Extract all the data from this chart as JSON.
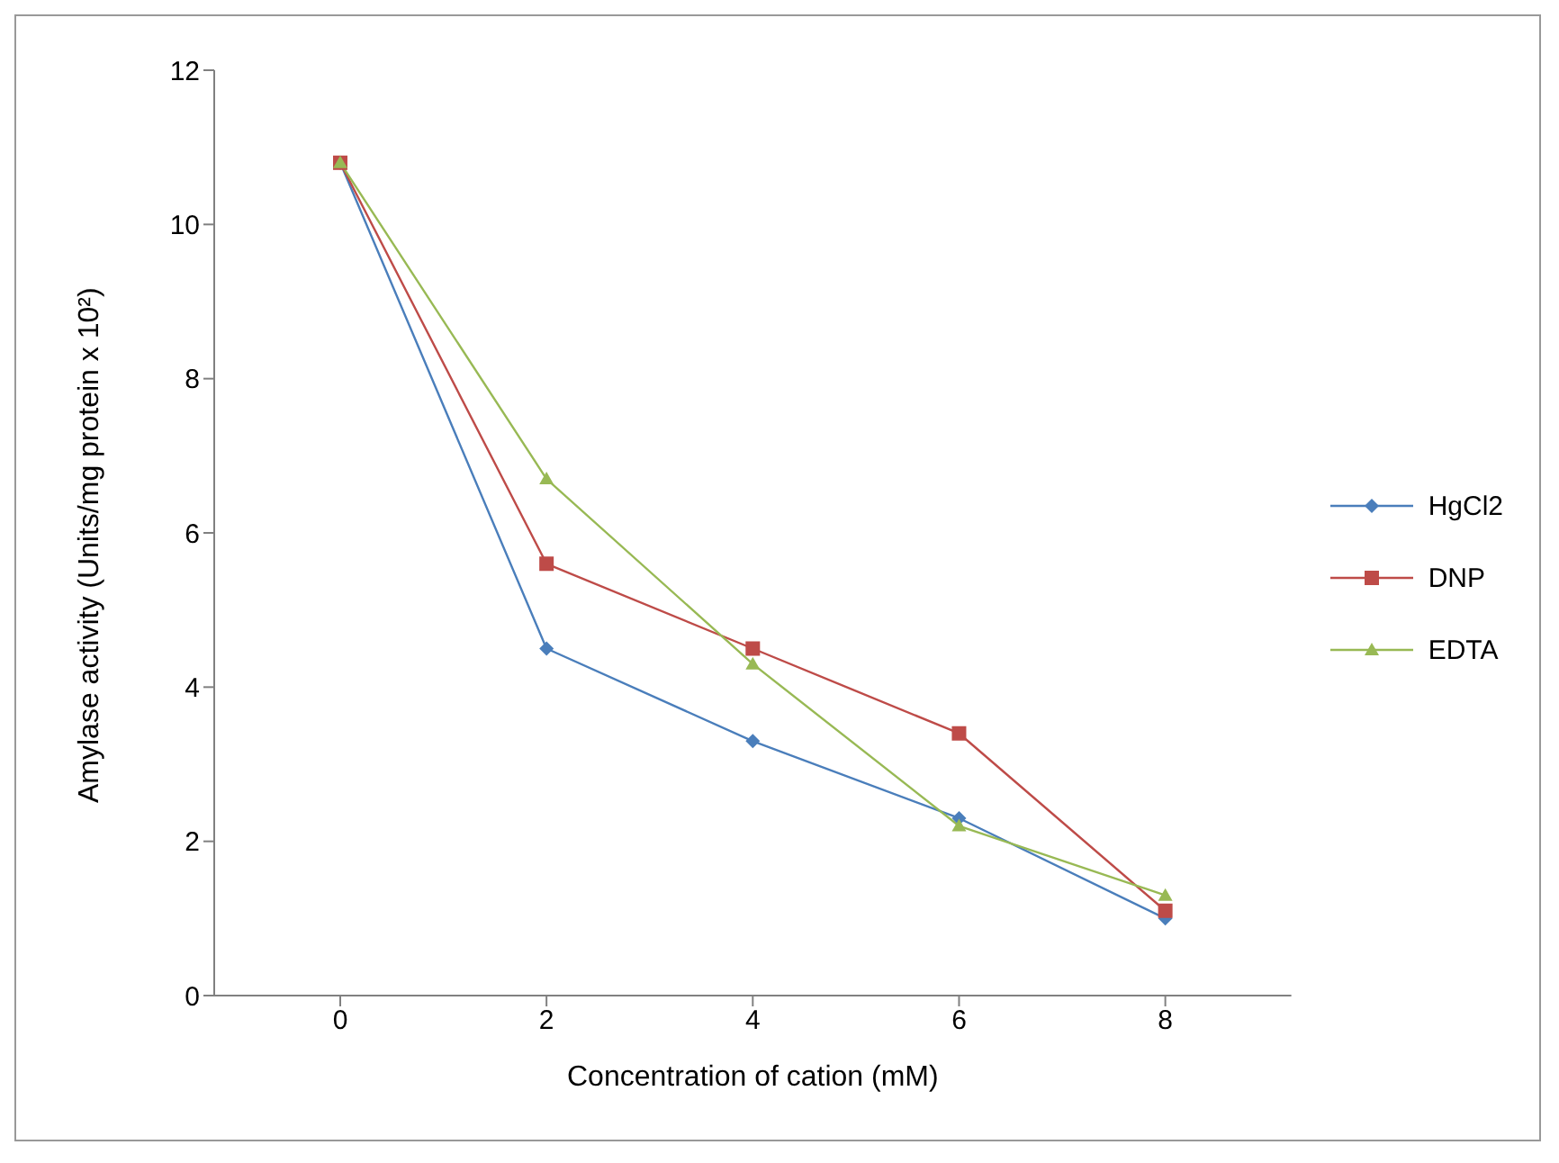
{
  "chart_data": {
    "type": "line",
    "xlabel": "Concentration of cation (mM)",
    "ylabel": "Amylase activity (Units/mg protein x 10²)",
    "categories": [
      "0",
      "2",
      "4",
      "6",
      "8"
    ],
    "series": [
      {
        "name": "HgCl2",
        "color": "#4a7ebb",
        "marker": "diamond",
        "values": [
          10.8,
          4.5,
          3.3,
          2.3,
          1.0
        ]
      },
      {
        "name": "DNP",
        "color": "#be4b48",
        "marker": "square",
        "values": [
          10.8,
          5.6,
          4.5,
          3.4,
          1.1
        ]
      },
      {
        "name": "EDTA",
        "color": "#98b954",
        "marker": "triangle",
        "values": [
          10.8,
          6.7,
          4.3,
          2.2,
          1.3
        ]
      }
    ],
    "ylim": [
      0,
      12
    ],
    "yticks": [
      0,
      2,
      4,
      6,
      8,
      10,
      12
    ],
    "grid": false,
    "legend": "right"
  }
}
